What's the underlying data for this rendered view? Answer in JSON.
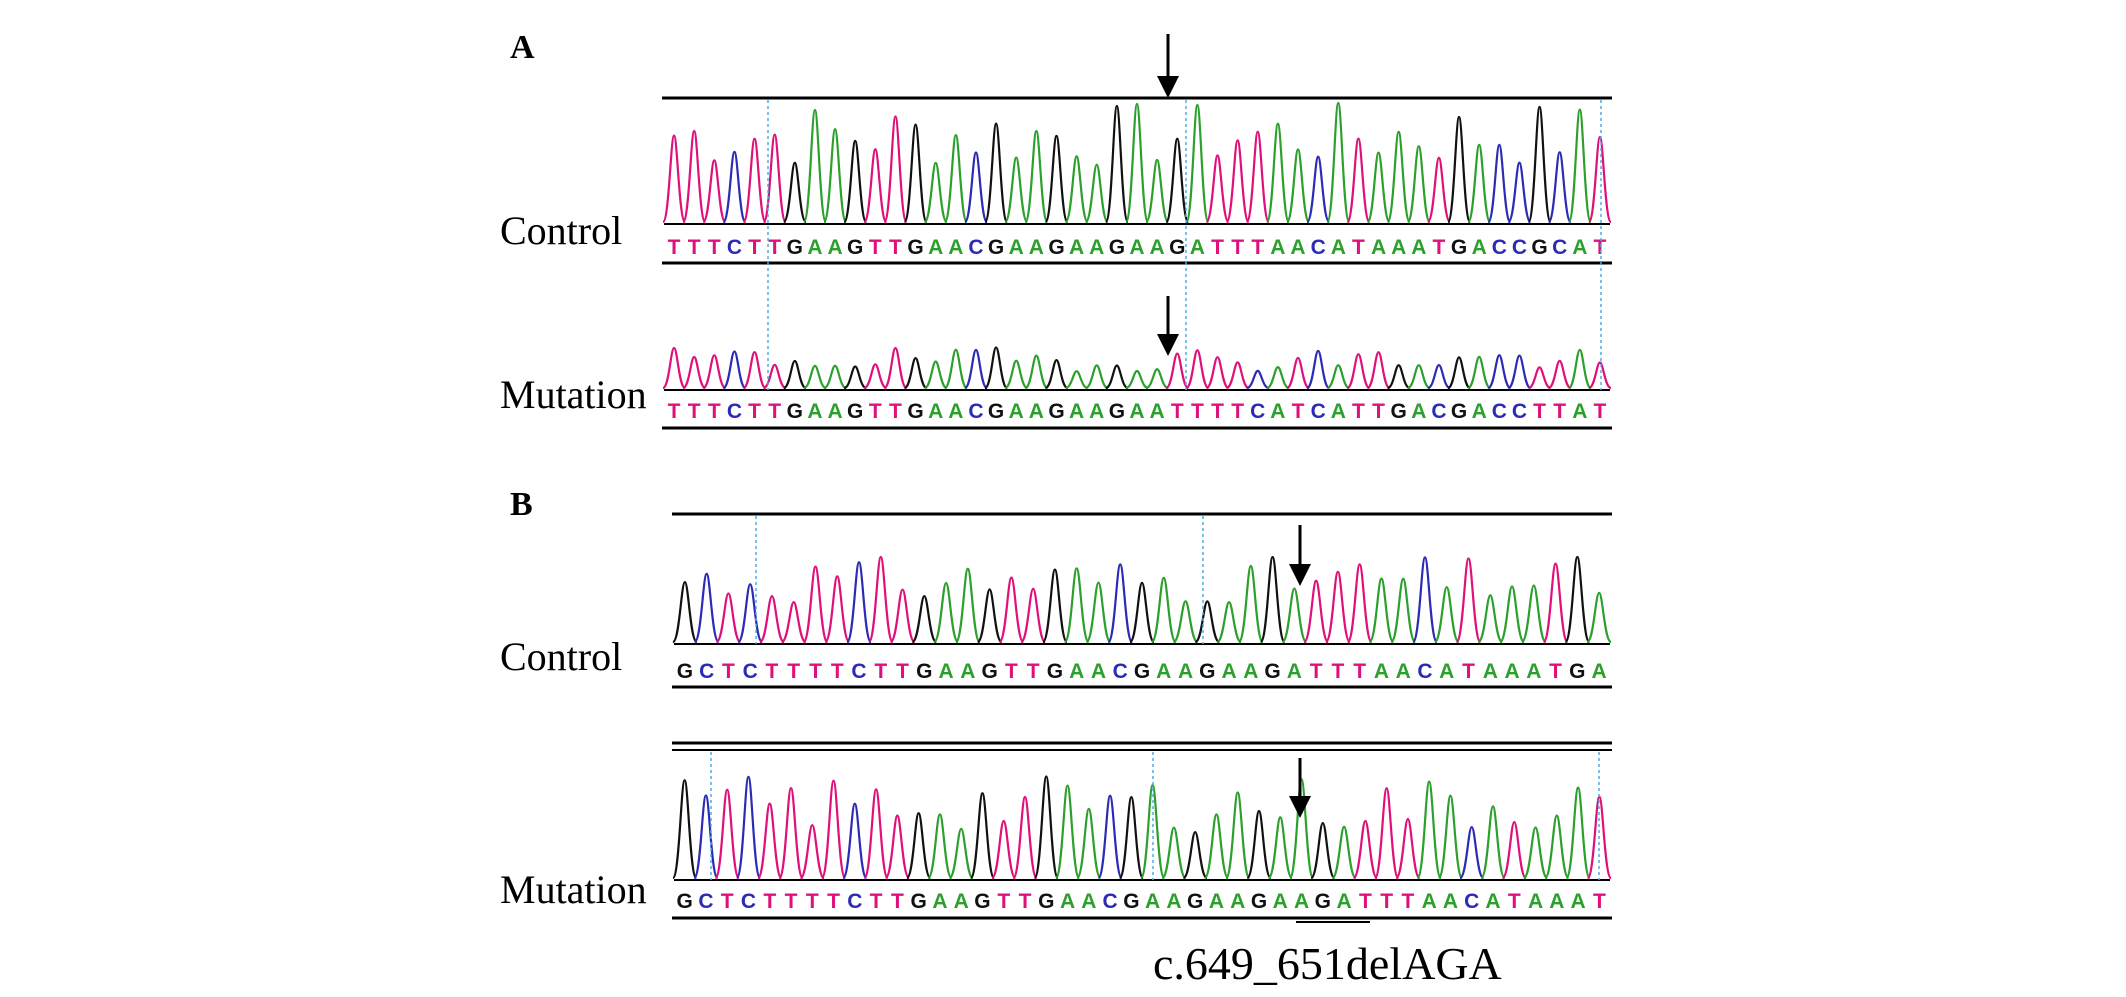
{
  "panels": [
    {
      "letter": "A",
      "tracks": [
        {
          "label": "Control",
          "sequence": "TTTCTTGAAGTTGAACGAAGAAGAAGATTTAACATAAATGACCGCAT",
          "peak_seed": 7,
          "peak_amplitude": "full"
        },
        {
          "label": "Mutation",
          "sequence": "TTTCTTGAAGTTGAACGAAGAAGAATTTTCATCATTGACGACCTTAT",
          "peak_seed": 19,
          "peak_amplitude": "low"
        }
      ]
    },
    {
      "letter": "B",
      "tracks": [
        {
          "label": "Control",
          "sequence": "GCTCTTTTCTTGAAGTTGAACGAAGAAGATTTAACATAAATGA",
          "peak_seed": 31,
          "peak_amplitude": "full"
        },
        {
          "label": "Mutation",
          "sequence": "GCTCTTTTCTTGAAGTTGAACGAAGAAGAAGATTTAACATAAAT",
          "peak_seed": 43,
          "peak_amplitude": "full"
        }
      ]
    }
  ],
  "annotation": "c.649_651delAGA",
  "base_colors": {
    "A": "#2ca02c",
    "C": "#2b2bb5",
    "G": "#111111",
    "T": "#e0107a"
  }
}
